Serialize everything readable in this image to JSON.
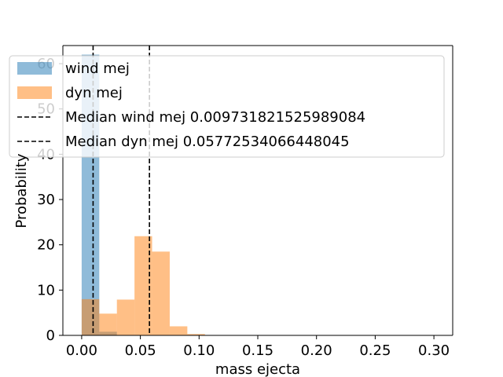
{
  "chart_data": {
    "type": "histogram",
    "xlabel": "mass ejecta",
    "ylabel": "Probability",
    "xlim": [
      -0.016,
      0.316
    ],
    "ylim": [
      0,
      64
    ],
    "xticks": [
      "0.00",
      "0.05",
      "0.10",
      "0.15",
      "0.20",
      "0.25",
      "0.30"
    ],
    "xtick_values": [
      0,
      0.05,
      0.1,
      0.15,
      0.2,
      0.25,
      0.3
    ],
    "yticks": [
      "0",
      "10",
      "20",
      "30",
      "40",
      "50",
      "60"
    ],
    "ytick_values": [
      0,
      10,
      20,
      30,
      40,
      50,
      60
    ],
    "grid": false,
    "legend_placement": "upper-left",
    "bin_edges": [
      0,
      0.015,
      0.03,
      0.045,
      0.06,
      0.075,
      0.09,
      0.105,
      0.12,
      0.135,
      0.15,
      0.165,
      0.18,
      0.195,
      0.21,
      0.225,
      0.24,
      0.255,
      0.27,
      0.285,
      0.3
    ],
    "series": [
      {
        "name": "wind mej",
        "color": "#1f77b4",
        "opacity": 0.5,
        "values": [
          62,
          0.8,
          0,
          0,
          0,
          0,
          0,
          0,
          0,
          0,
          0,
          0,
          0,
          0,
          0,
          0,
          0,
          0,
          0,
          0
        ]
      },
      {
        "name": "dyn mej",
        "color": "#ff7f0e",
        "opacity": 0.5,
        "values": [
          8,
          4.8,
          7.9,
          21.9,
          18.5,
          2.0,
          0.3,
          0,
          0,
          0,
          0,
          0,
          0,
          0,
          0,
          0,
          0,
          0,
          0,
          0
        ]
      }
    ],
    "vlines": [
      {
        "name": "Median wind mej 0.009731821525989084",
        "x": 0.009731821525989084,
        "style": "dashed",
        "color": "#000000"
      },
      {
        "name": "Median dyn mej 0.05772534066448045",
        "x": 0.05772534066448045,
        "style": "dashed",
        "color": "#000000"
      }
    ]
  }
}
